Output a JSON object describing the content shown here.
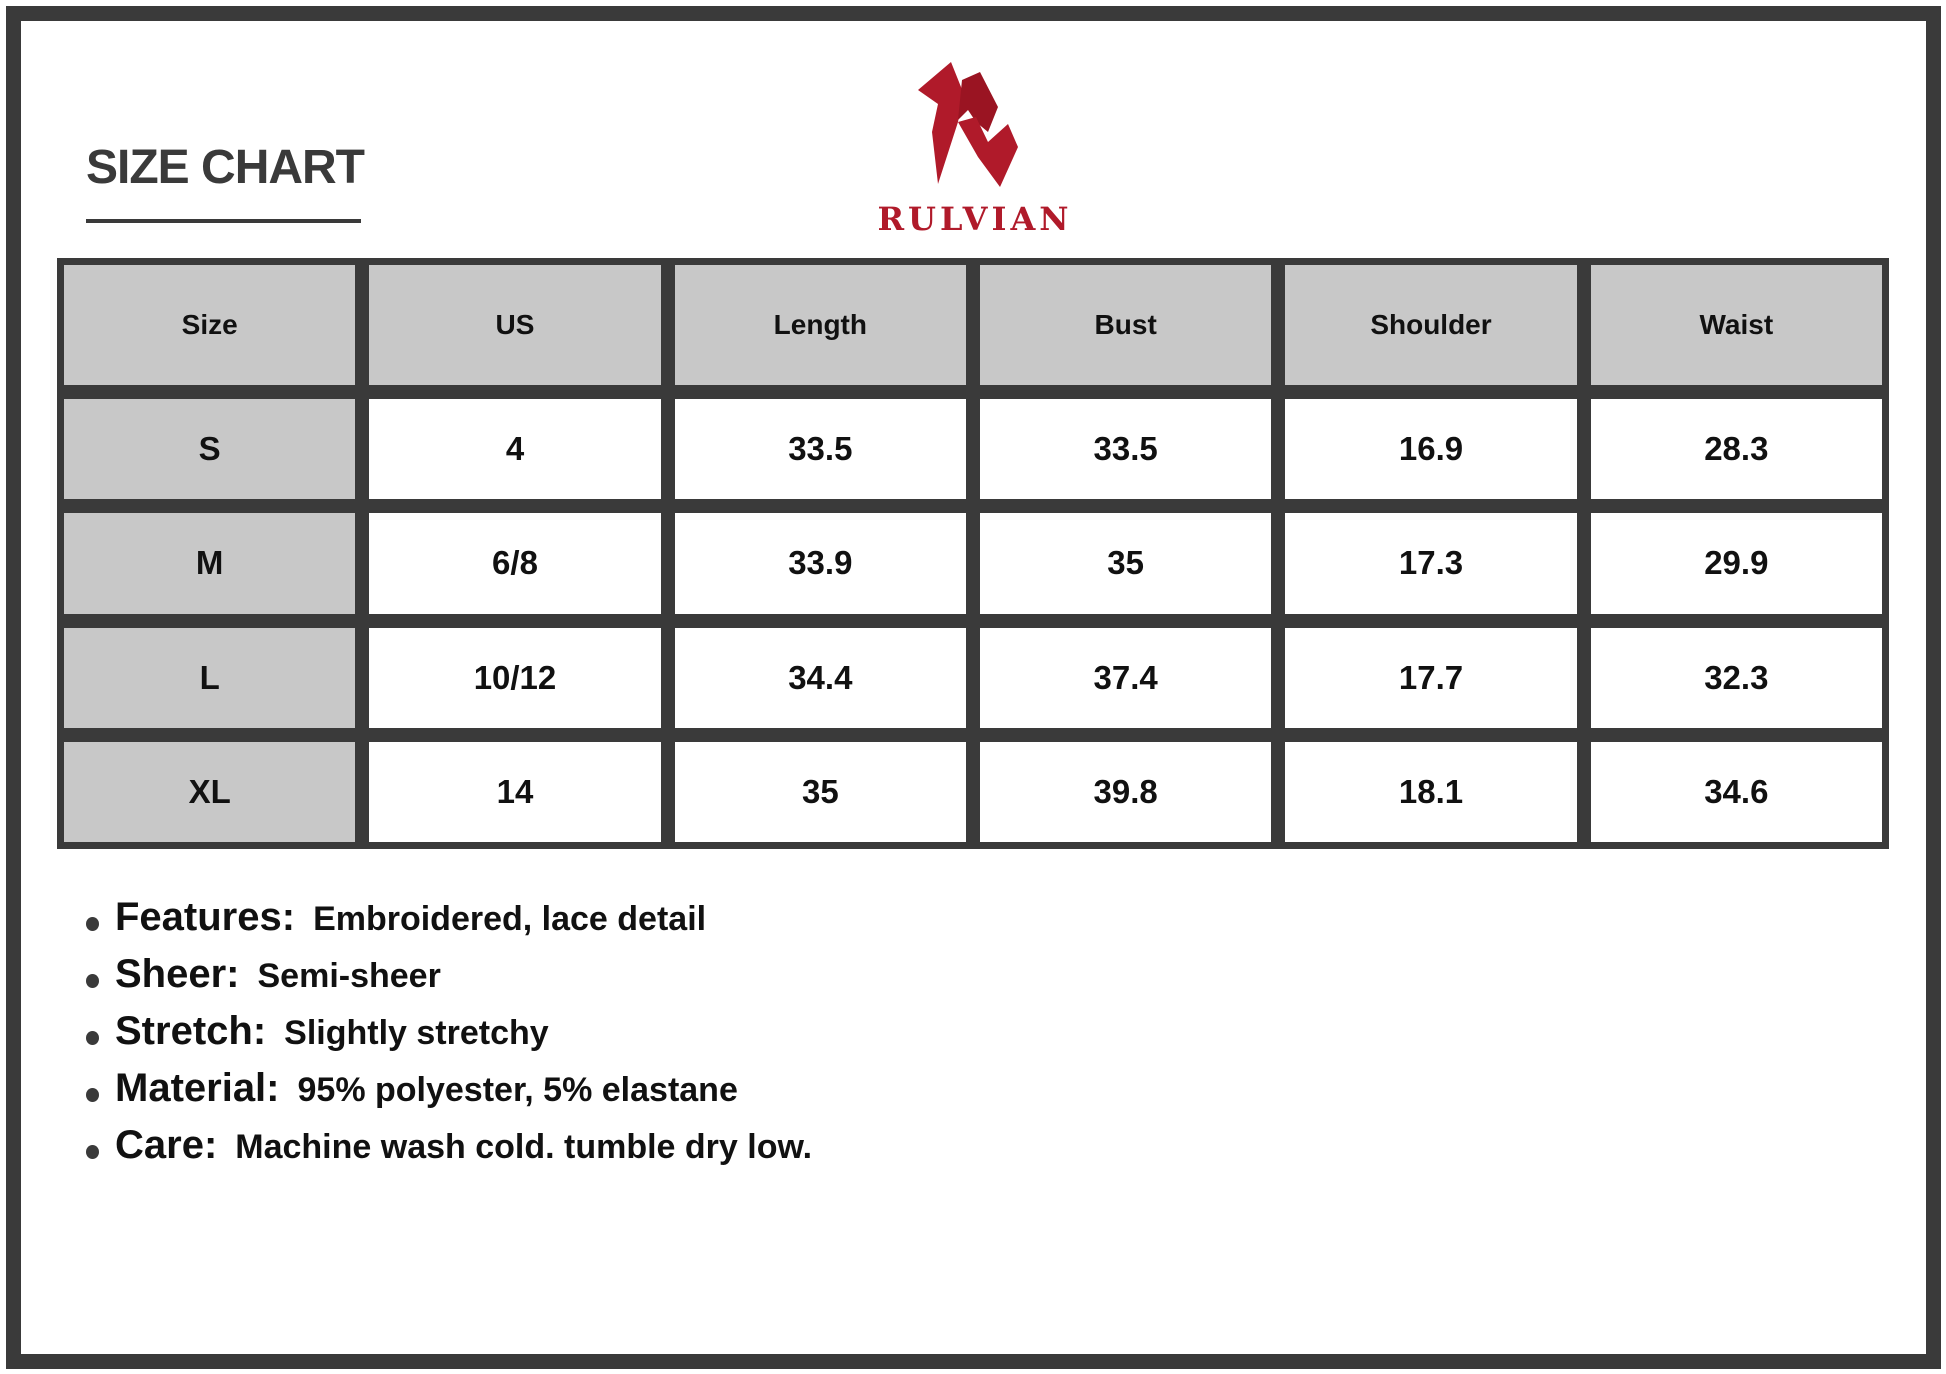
{
  "title": "SIZE CHART",
  "brand": {
    "name": "RULVIAN",
    "color": "#b01a2a",
    "logo_icon": "stylized-R-logo"
  },
  "table": {
    "headers": [
      "Size",
      "US",
      "Length",
      "Bust",
      "Shoulder",
      "Waist"
    ],
    "rows": [
      [
        "S",
        "4",
        "33.5",
        "33.5",
        "16.9",
        "28.3"
      ],
      [
        "M",
        "6/8",
        "33.9",
        "35",
        "17.3",
        "29.9"
      ],
      [
        "L",
        "10/12",
        "34.4",
        "37.4",
        "17.7",
        "32.3"
      ],
      [
        "XL",
        "14",
        "35",
        "39.8",
        "18.1",
        "34.6"
      ]
    ]
  },
  "features": [
    {
      "label": "Features:",
      "value": "Embroidered, lace detail"
    },
    {
      "label": "Sheer:",
      "value": "Semi-sheer"
    },
    {
      "label": "Stretch:",
      "value": "Slightly stretchy"
    },
    {
      "label": "Material:",
      "value": "95% polyester, 5% elastane"
    },
    {
      "label": "Care:",
      "value": "Machine wash cold. tumble dry low."
    }
  ]
}
